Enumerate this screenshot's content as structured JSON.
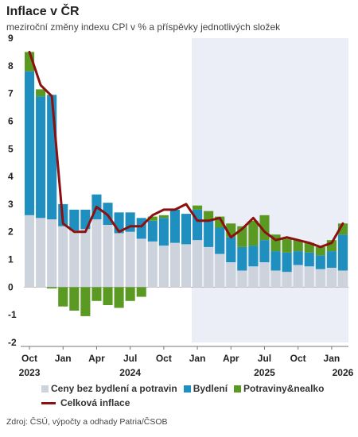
{
  "header": {
    "title": "Inflace v ČR",
    "subtitle": "meziroční změny indexu CPI v % a příspěvky jednotlivých složek"
  },
  "legend": {
    "core": "Ceny bez bydlení a potravin",
    "housing": "Bydlení",
    "food": "Potraviny&nealko",
    "total": "Celková inflace"
  },
  "source": "Zdroj: ČSÚ, výpočty a odhady Patria/ČSOB",
  "colors": {
    "core": "#cdd3dc",
    "housing": "#1f8fbf",
    "food": "#5b9a22",
    "total": "#8b1010",
    "forecast_bg": "#eceef7"
  },
  "chart_data": {
    "type": "bar",
    "stacked": true,
    "months": [
      "Oct 2023",
      "Nov 2023",
      "Dec 2023",
      "Jan 2024",
      "Feb 2024",
      "Mar 2024",
      "Apr 2024",
      "May 2024",
      "Jun 2024",
      "Jul 2024",
      "Aug 2024",
      "Sep 2024",
      "Oct 2024",
      "Nov 2024",
      "Dec 2024",
      "Jan 2025",
      "Feb 2025",
      "Mar 2025",
      "Apr 2025",
      "May 2025",
      "Jun 2025",
      "Jul 2025",
      "Aug 2025",
      "Sep 2025",
      "Oct 2025",
      "Nov 2025",
      "Dec 2025",
      "Jan 2026",
      "Feb 2026"
    ],
    "forecast_start": "Jan 2025",
    "series": [
      {
        "name": "Ceny bez bydlení a potravin",
        "key": "core",
        "values": [
          2.6,
          2.5,
          2.45,
          2.2,
          2.05,
          2.1,
          2.45,
          2.25,
          1.95,
          2.0,
          1.75,
          1.65,
          1.5,
          1.6,
          1.55,
          1.7,
          1.45,
          1.2,
          0.9,
          0.6,
          0.75,
          0.9,
          0.6,
          0.55,
          0.8,
          0.75,
          0.65,
          0.7,
          0.6
        ]
      },
      {
        "name": "Bydlení",
        "key": "housing",
        "values": [
          5.2,
          4.4,
          4.5,
          0.8,
          0.75,
          0.7,
          0.9,
          0.8,
          0.75,
          0.7,
          0.75,
          0.75,
          1.0,
          1.2,
          1.1,
          1.1,
          0.95,
          0.95,
          0.9,
          0.85,
          0.75,
          0.8,
          0.7,
          0.7,
          0.5,
          0.5,
          0.5,
          0.6,
          1.3
        ]
      },
      {
        "name": "Potraviny&nealko",
        "key": "food",
        "values": [
          0.7,
          0.25,
          -0.05,
          -0.7,
          -0.85,
          -1.05,
          -0.5,
          -0.65,
          -0.75,
          -0.5,
          -0.35,
          0.15,
          0.1,
          0.0,
          0.0,
          0.15,
          0.35,
          0.4,
          0.5,
          0.75,
          0.9,
          0.9,
          0.6,
          0.5,
          0.4,
          0.35,
          0.3,
          0.4,
          0.4
        ]
      },
      {
        "name": "Celková inflace",
        "key": "total",
        "type": "line",
        "values": [
          8.5,
          7.3,
          6.9,
          2.3,
          2.0,
          2.0,
          2.9,
          2.6,
          2.0,
          2.2,
          2.2,
          2.6,
          2.8,
          2.8,
          3.0,
          2.4,
          2.4,
          2.5,
          1.8,
          2.1,
          2.5,
          2.0,
          1.7,
          1.8,
          1.7,
          1.6,
          1.45,
          1.6,
          2.3
        ]
      }
    ],
    "y_ticks": [
      "9",
      "8",
      "7",
      "6",
      "5",
      "4",
      "3",
      "2",
      "1",
      "0",
      "-1",
      "-2"
    ],
    "ylim": [
      -2,
      9
    ],
    "x_ticks": [
      {
        "index": 0,
        "label": "Oct"
      },
      {
        "index": 3,
        "label": "Jan"
      },
      {
        "index": 6,
        "label": "Apr"
      },
      {
        "index": 9,
        "label": "Jul"
      },
      {
        "index": 12,
        "label": "Oct"
      },
      {
        "index": 15,
        "label": "Jan"
      },
      {
        "index": 18,
        "label": "Apr"
      },
      {
        "index": 21,
        "label": "Jul"
      },
      {
        "index": 24,
        "label": "Oct"
      },
      {
        "index": 27,
        "label": "Jan"
      }
    ],
    "year_labels": [
      {
        "index": 0,
        "label": "2023"
      },
      {
        "index": 9,
        "label": "2024"
      },
      {
        "index": 21,
        "label": "2025"
      },
      {
        "index": 28,
        "label": "2026"
      }
    ],
    "grid": false,
    "legend_position": "bottom"
  }
}
